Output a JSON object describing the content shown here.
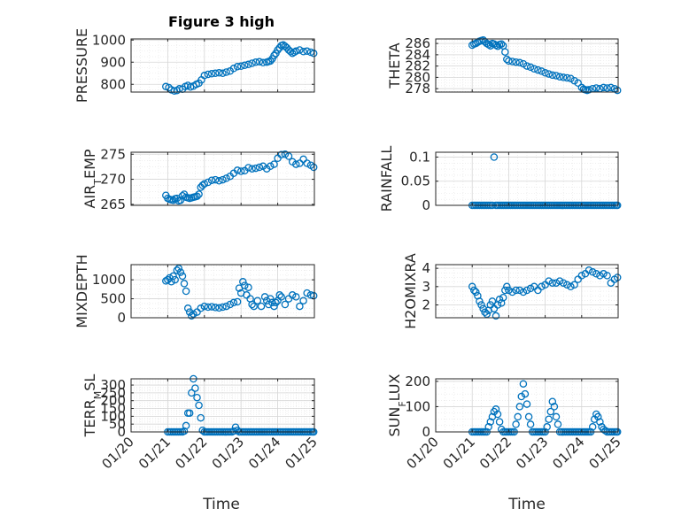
{
  "chart_data": {
    "type": "scatter",
    "title": "Figure 3 high",
    "xlabel": "Time",
    "marker": "circle-open",
    "marker_color": "#0072BD",
    "grid": true,
    "minor_grid": true,
    "x_ticks": [
      "01/20",
      "01/21",
      "01/22",
      "01/23",
      "01/24",
      "01/25"
    ],
    "xlim": [
      0,
      5
    ],
    "subplots": [
      {
        "id": "pressure",
        "ylabel": "PRESSURE",
        "ylim": [
          765,
          1005
        ],
        "yticks": [
          800,
          900,
          1000
        ],
        "yticklabels": [
          "800",
          "900",
          "1000"
        ],
        "x": [
          0.95,
          1.03,
          1.1,
          1.18,
          1.25,
          1.32,
          1.4,
          1.48,
          1.55,
          1.62,
          1.7,
          1.78,
          1.85,
          1.92,
          2.0,
          2.1,
          2.2,
          2.3,
          2.4,
          2.5,
          2.6,
          2.7,
          2.8,
          2.9,
          3.0,
          3.1,
          3.2,
          3.3,
          3.4,
          3.5,
          3.6,
          3.7,
          3.75,
          3.8,
          3.85,
          3.9,
          3.95,
          4.0,
          4.05,
          4.1,
          4.15,
          4.2,
          4.25,
          4.3,
          4.35,
          4.4,
          4.45,
          4.5,
          4.6,
          4.7,
          4.8,
          4.9,
          4.98
        ],
        "y": [
          790,
          785,
          775,
          770,
          772,
          780,
          778,
          790,
          795,
          788,
          792,
          800,
          805,
          820,
          840,
          845,
          848,
          850,
          852,
          850,
          855,
          860,
          872,
          880,
          882,
          886,
          890,
          895,
          900,
          902,
          898,
          900,
          903,
          905,
          915,
          930,
          940,
          955,
          965,
          975,
          978,
          972,
          965,
          955,
          948,
          940,
          945,
          950,
          955,
          948,
          950,
          945,
          940
        ]
      },
      {
        "id": "theta",
        "ylabel": "THETA",
        "ylim": [
          277.4,
          286.8
        ],
        "yticks": [
          278,
          280,
          282,
          284,
          286
        ],
        "yticklabels": [
          "278",
          "280",
          "282",
          "284",
          "286"
        ],
        "x": [
          1.0,
          1.05,
          1.1,
          1.15,
          1.2,
          1.25,
          1.3,
          1.35,
          1.4,
          1.45,
          1.5,
          1.55,
          1.6,
          1.65,
          1.7,
          1.75,
          1.8,
          1.85,
          1.9,
          1.95,
          2.0,
          2.1,
          2.2,
          2.3,
          2.4,
          2.5,
          2.6,
          2.7,
          2.8,
          2.9,
          3.0,
          3.1,
          3.2,
          3.3,
          3.4,
          3.5,
          3.6,
          3.7,
          3.8,
          3.9,
          4.0,
          4.05,
          4.1,
          4.15,
          4.2,
          4.3,
          4.4,
          4.5,
          4.6,
          4.7,
          4.8,
          4.9,
          4.98
        ],
        "y": [
          285.7,
          285.9,
          286.0,
          286.2,
          286.4,
          286.5,
          286.6,
          286.3,
          286.0,
          285.8,
          285.6,
          286.0,
          285.9,
          285.7,
          285.5,
          285.8,
          285.9,
          285.6,
          284.5,
          283.2,
          282.9,
          282.8,
          282.7,
          282.6,
          282.4,
          282.0,
          281.8,
          281.5,
          281.3,
          281.1,
          280.8,
          280.6,
          280.4,
          280.3,
          280.1,
          280.0,
          279.9,
          279.8,
          279.4,
          279.0,
          278.2,
          277.9,
          277.8,
          277.7,
          277.8,
          278.0,
          278.1,
          278.0,
          278.2,
          278.1,
          278.2,
          278.0,
          277.7
        ]
      },
      {
        "id": "air_temp",
        "ylabel": "AIR_TEMP",
        "ylim": [
          264.8,
          275.4
        ],
        "yticks": [
          265,
          270,
          275
        ],
        "yticklabels": [
          "265",
          "270",
          "275"
        ],
        "x": [
          0.95,
          1.0,
          1.05,
          1.1,
          1.15,
          1.2,
          1.25,
          1.3,
          1.35,
          1.4,
          1.45,
          1.5,
          1.55,
          1.6,
          1.65,
          1.7,
          1.75,
          1.8,
          1.85,
          1.9,
          1.95,
          2.0,
          2.1,
          2.2,
          2.3,
          2.4,
          2.5,
          2.6,
          2.7,
          2.8,
          2.9,
          3.0,
          3.1,
          3.2,
          3.3,
          3.4,
          3.5,
          3.6,
          3.7,
          3.8,
          3.9,
          4.0,
          4.1,
          4.2,
          4.3,
          4.4,
          4.5,
          4.6,
          4.7,
          4.8,
          4.9,
          4.98
        ],
        "y": [
          266.8,
          266.2,
          266.0,
          265.9,
          265.8,
          266.1,
          266.2,
          265.7,
          265.8,
          266.7,
          267.0,
          266.4,
          266.3,
          266.2,
          266.3,
          266.4,
          266.5,
          266.6,
          267.0,
          268.4,
          268.8,
          269.1,
          269.4,
          269.8,
          269.9,
          269.7,
          269.9,
          270.2,
          270.6,
          271.2,
          271.8,
          271.6,
          271.7,
          272.3,
          272.1,
          272.2,
          272.4,
          272.6,
          272.1,
          272.6,
          273.0,
          274.2,
          274.9,
          275.0,
          274.6,
          273.5,
          273.0,
          273.2,
          274.0,
          273.2,
          272.8,
          272.4
        ]
      },
      {
        "id": "rainfall",
        "ylabel": "RAINFALL",
        "ylim": [
          0,
          0.11
        ],
        "yticks": [
          0,
          0.05,
          0.1
        ],
        "yticklabels": [
          "0",
          "0.05",
          "0.1"
        ],
        "x": [
          1.0,
          1.05,
          1.1,
          1.15,
          1.2,
          1.25,
          1.3,
          1.35,
          1.4,
          1.45,
          1.5,
          1.55,
          1.6,
          1.65,
          1.7,
          1.75,
          1.8,
          1.85,
          1.9,
          1.95,
          2.0,
          2.05,
          2.1,
          2.15,
          2.2,
          2.25,
          2.3,
          2.35,
          2.4,
          2.45,
          2.5,
          2.55,
          2.6,
          2.65,
          2.7,
          2.75,
          2.8,
          2.85,
          2.9,
          2.95,
          3.0,
          3.05,
          3.1,
          3.15,
          3.2,
          3.25,
          3.3,
          3.35,
          3.4,
          3.45,
          3.5,
          3.55,
          3.6,
          3.65,
          3.7,
          3.75,
          3.8,
          3.85,
          3.9,
          3.95,
          4.0,
          4.05,
          4.1,
          4.15,
          4.2,
          4.25,
          4.3,
          4.35,
          4.4,
          4.45,
          4.5,
          4.55,
          4.6,
          4.65,
          4.7,
          4.75,
          4.8,
          4.85,
          4.9,
          4.95,
          4.98
        ],
        "y": [
          0,
          0,
          0,
          0,
          0,
          0,
          0,
          0,
          0,
          0,
          0,
          0,
          0.1,
          0,
          0,
          0,
          0,
          0,
          0,
          0,
          0,
          0,
          0,
          0,
          0,
          0,
          0,
          0,
          0,
          0,
          0,
          0,
          0,
          0,
          0,
          0,
          0,
          0,
          0,
          0,
          0,
          0,
          0,
          0,
          0,
          0,
          0,
          0,
          0,
          0,
          0,
          0,
          0,
          0,
          0,
          0,
          0,
          0,
          0,
          0,
          0,
          0,
          0,
          0,
          0,
          0,
          0,
          0,
          0,
          0,
          0,
          0,
          0,
          0,
          0,
          0,
          0,
          0,
          0,
          0,
          0
        ]
      },
      {
        "id": "mixdepth",
        "ylabel": "MIXDEPTH",
        "ylim": [
          0,
          1400
        ],
        "yticks": [
          0,
          500,
          1000
        ],
        "yticklabels": [
          "0",
          "500",
          "1000"
        ],
        "x": [
          0.95,
          1.0,
          1.05,
          1.1,
          1.15,
          1.2,
          1.25,
          1.3,
          1.35,
          1.4,
          1.45,
          1.5,
          1.55,
          1.6,
          1.65,
          1.7,
          1.8,
          1.9,
          2.0,
          2.1,
          2.2,
          2.3,
          2.4,
          2.5,
          2.6,
          2.7,
          2.8,
          2.9,
          2.95,
          3.0,
          3.05,
          3.1,
          3.15,
          3.2,
          3.25,
          3.3,
          3.35,
          3.45,
          3.55,
          3.65,
          3.7,
          3.75,
          3.8,
          3.85,
          3.9,
          3.95,
          4.0,
          4.05,
          4.1,
          4.2,
          4.3,
          4.4,
          4.5,
          4.6,
          4.7,
          4.8,
          4.9,
          4.98
        ],
        "y": [
          970,
          1000,
          1050,
          950,
          1100,
          1000,
          1250,
          1300,
          1200,
          1100,
          900,
          700,
          250,
          150,
          50,
          100,
          150,
          250,
          300,
          280,
          290,
          270,
          260,
          280,
          300,
          350,
          400,
          420,
          780,
          650,
          950,
          850,
          600,
          800,
          500,
          350,
          300,
          450,
          300,
          550,
          450,
          350,
          500,
          400,
          300,
          400,
          450,
          600,
          550,
          350,
          500,
          600,
          550,
          300,
          450,
          650,
          600,
          580
        ]
      },
      {
        "id": "h2omixra",
        "ylabel": "H2OMIXRA",
        "ylim": [
          1.3,
          4.2
        ],
        "yticks": [
          2,
          3,
          4
        ],
        "yticklabels": [
          "2",
          "3",
          "4"
        ],
        "x": [
          1.0,
          1.05,
          1.1,
          1.15,
          1.2,
          1.25,
          1.3,
          1.35,
          1.4,
          1.45,
          1.5,
          1.55,
          1.6,
          1.65,
          1.7,
          1.75,
          1.8,
          1.85,
          1.9,
          1.95,
          2.0,
          2.1,
          2.2,
          2.3,
          2.4,
          2.5,
          2.6,
          2.7,
          2.8,
          2.9,
          3.0,
          3.1,
          3.2,
          3.3,
          3.4,
          3.5,
          3.6,
          3.7,
          3.8,
          3.9,
          4.0,
          4.1,
          4.2,
          4.3,
          4.4,
          4.5,
          4.6,
          4.7,
          4.8,
          4.9,
          4.98
        ],
        "y": [
          3.0,
          2.8,
          2.7,
          2.5,
          2.2,
          2.0,
          1.8,
          1.6,
          1.5,
          1.7,
          2.0,
          2.2,
          1.8,
          1.4,
          2.0,
          2.3,
          2.1,
          2.4,
          2.8,
          3.0,
          2.8,
          2.7,
          2.8,
          2.8,
          2.7,
          2.8,
          2.9,
          3.0,
          2.8,
          3.0,
          3.1,
          3.3,
          3.2,
          3.2,
          3.3,
          3.2,
          3.1,
          3.0,
          3.1,
          3.4,
          3.6,
          3.7,
          3.9,
          3.8,
          3.7,
          3.6,
          3.7,
          3.6,
          3.2,
          3.4,
          3.5
        ]
      },
      {
        "id": "terr_msl",
        "ylabel": "TERR_MSL",
        "ylim": [
          0,
          340
        ],
        "yticks": [
          0,
          50,
          100,
          150,
          200,
          250,
          300
        ],
        "yticklabels": [
          "0",
          "50",
          "100",
          "150",
          "200",
          "250",
          "300"
        ],
        "x": [
          1.0,
          1.05,
          1.1,
          1.15,
          1.2,
          1.25,
          1.3,
          1.35,
          1.4,
          1.45,
          1.5,
          1.55,
          1.6,
          1.65,
          1.7,
          1.75,
          1.8,
          1.85,
          1.9,
          1.95,
          2.0,
          2.05,
          2.1,
          2.15,
          2.2,
          2.25,
          2.3,
          2.35,
          2.4,
          2.45,
          2.5,
          2.55,
          2.6,
          2.65,
          2.7,
          2.75,
          2.8,
          2.85,
          2.9,
          2.95,
          3.0,
          3.05,
          3.1,
          3.15,
          3.2,
          3.25,
          3.3,
          3.35,
          3.4,
          3.45,
          3.5,
          3.55,
          3.6,
          3.65,
          3.7,
          3.75,
          3.8,
          3.85,
          3.9,
          3.95,
          4.0,
          4.05,
          4.1,
          4.15,
          4.2,
          4.25,
          4.3,
          4.35,
          4.4,
          4.45,
          4.5,
          4.55,
          4.6,
          4.65,
          4.7,
          4.75,
          4.8,
          4.85,
          4.9,
          4.95,
          4.98
        ],
        "y": [
          0,
          0,
          0,
          0,
          0,
          0,
          0,
          0,
          0,
          5,
          40,
          120,
          120,
          250,
          340,
          280,
          220,
          170,
          90,
          10,
          0,
          0,
          0,
          0,
          0,
          0,
          0,
          0,
          0,
          0,
          0,
          0,
          0,
          0,
          0,
          0,
          5,
          30,
          10,
          0,
          0,
          0,
          0,
          0,
          0,
          0,
          0,
          0,
          0,
          0,
          0,
          0,
          0,
          0,
          0,
          0,
          0,
          0,
          0,
          0,
          0,
          0,
          0,
          0,
          0,
          0,
          0,
          0,
          0,
          0,
          0,
          0,
          0,
          0,
          0,
          0,
          0,
          0,
          0,
          0,
          0
        ]
      },
      {
        "id": "sun_flux",
        "ylabel": "SUN_FLUX",
        "ylim": [
          0,
          210
        ],
        "yticks": [
          0,
          100,
          200
        ],
        "yticklabels": [
          "0",
          "100",
          "200"
        ],
        "x": [
          1.0,
          1.05,
          1.1,
          1.15,
          1.2,
          1.25,
          1.3,
          1.35,
          1.4,
          1.45,
          1.5,
          1.55,
          1.6,
          1.65,
          1.7,
          1.75,
          1.8,
          1.85,
          1.9,
          1.95,
          2.0,
          2.05,
          2.1,
          2.15,
          2.2,
          2.25,
          2.3,
          2.35,
          2.4,
          2.45,
          2.5,
          2.55,
          2.6,
          2.65,
          2.7,
          2.75,
          2.8,
          2.85,
          2.9,
          2.95,
          3.0,
          3.05,
          3.1,
          3.15,
          3.2,
          3.25,
          3.3,
          3.35,
          3.4,
          3.45,
          3.5,
          3.55,
          3.6,
          3.65,
          3.7,
          3.75,
          3.8,
          3.85,
          3.9,
          3.95,
          4.0,
          4.05,
          4.1,
          4.15,
          4.2,
          4.25,
          4.3,
          4.35,
          4.4,
          4.45,
          4.5,
          4.55,
          4.6,
          4.65,
          4.7,
          4.75,
          4.8,
          4.85,
          4.9,
          4.95,
          4.98
        ],
        "y": [
          0,
          0,
          0,
          0,
          0,
          0,
          0,
          0,
          0,
          20,
          40,
          60,
          80,
          90,
          70,
          40,
          10,
          0,
          0,
          0,
          0,
          0,
          0,
          0,
          30,
          60,
          100,
          140,
          190,
          150,
          110,
          60,
          30,
          0,
          0,
          0,
          0,
          0,
          0,
          0,
          0,
          20,
          50,
          80,
          120,
          100,
          60,
          30,
          0,
          0,
          0,
          0,
          0,
          0,
          0,
          0,
          0,
          0,
          0,
          0,
          0,
          0,
          0,
          0,
          0,
          0,
          20,
          50,
          70,
          60,
          40,
          20,
          10,
          5,
          0,
          0,
          0,
          0,
          0,
          0,
          0
        ]
      }
    ]
  }
}
